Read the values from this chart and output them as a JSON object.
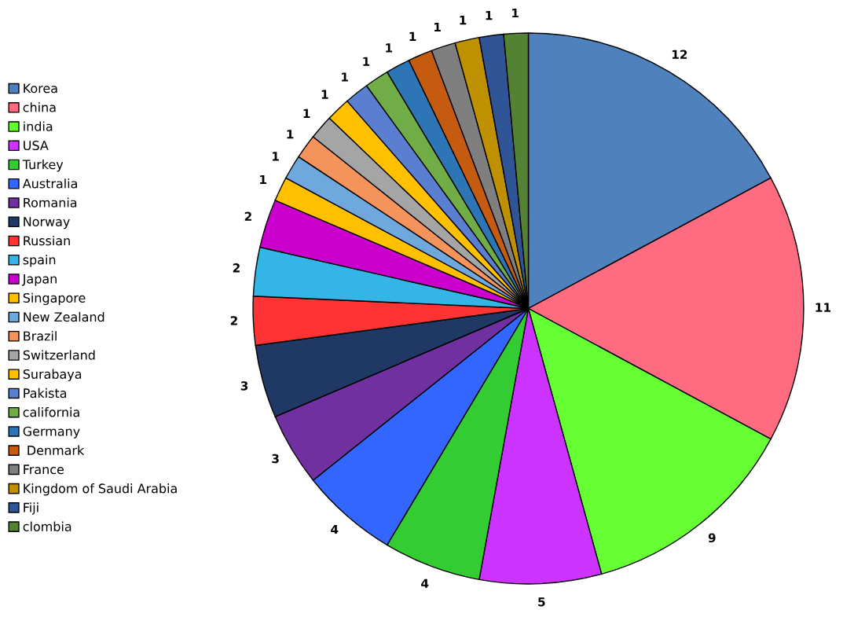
{
  "chart_data": {
    "type": "pie",
    "categories": [
      "Korea",
      "china",
      "india",
      "USA",
      "Turkey",
      "Australia",
      "Romania",
      "Norway",
      "Russian",
      "spain",
      "Japan",
      "Singapore",
      "New Zealand",
      "Brazil",
      "Switzerland",
      "Surabaya",
      "Pakista",
      "california",
      "Germany",
      " Denmark",
      "France",
      "Kingdom of Saudi Arabia",
      "Fiji",
      "clombia"
    ],
    "values": [
      12,
      11,
      9,
      5,
      4,
      4,
      3,
      3,
      2,
      2,
      2,
      1,
      1,
      1,
      1,
      1,
      1,
      1,
      1,
      1,
      1,
      1,
      1,
      1
    ],
    "colors": [
      "#4f81bd",
      "#ff6b81",
      "#66ff33",
      "#cc33ff",
      "#33cc33",
      "#3366ff",
      "#7030a0",
      "#1f3864",
      "#ff3333",
      "#33b5e5",
      "#cc00cc",
      "#ffc000",
      "#6fa8dc",
      "#f4945c",
      "#a5a5a5",
      "#ffc000",
      "#5b7fd0",
      "#70ad47",
      "#2e75b6",
      "#c55a11",
      "#7f7f7f",
      "#bf9000",
      "#2f5597",
      "#548235"
    ],
    "data_labels": true,
    "legend": "left"
  }
}
